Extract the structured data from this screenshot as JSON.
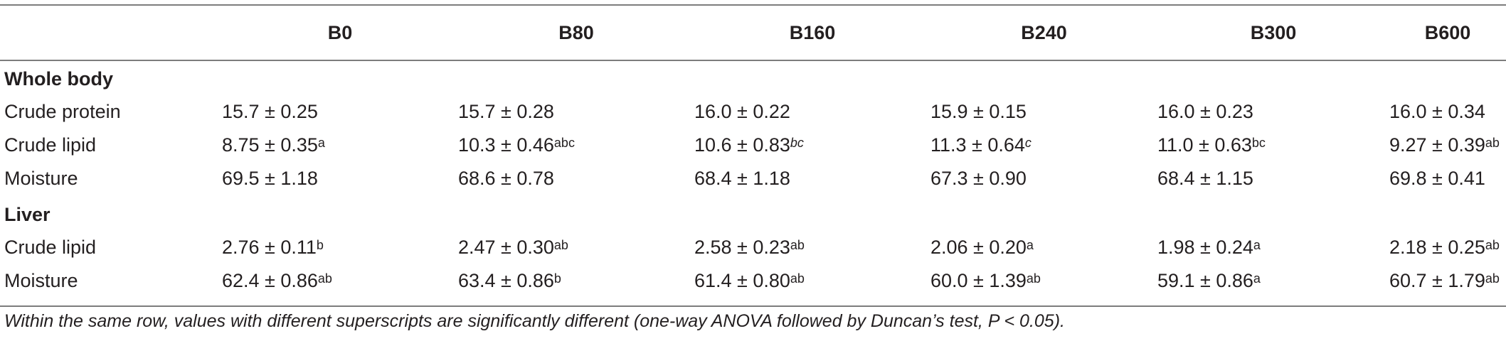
{
  "table": {
    "columns": [
      "",
      "B0",
      "B80",
      "B160",
      "B240",
      "B300",
      "B600"
    ],
    "sections": [
      {
        "title": "Whole body",
        "rows": [
          {
            "label": "Crude protein",
            "cells": [
              {
                "v": "15.7 ± 0.25",
                "sup": ""
              },
              {
                "v": "15.7 ± 0.28",
                "sup": ""
              },
              {
                "v": "16.0 ± 0.22",
                "sup": ""
              },
              {
                "v": "15.9 ± 0.15",
                "sup": ""
              },
              {
                "v": "16.0 ± 0.23",
                "sup": ""
              },
              {
                "v": "16.0 ± 0.34",
                "sup": ""
              }
            ]
          },
          {
            "label": "Crude lipid",
            "cells": [
              {
                "v": "8.75 ± 0.35",
                "sup": "a"
              },
              {
                "v": "10.3 ± 0.46",
                "sup": "abc"
              },
              {
                "v": "10.6 ± 0.83",
                "sup": "bc"
              },
              {
                "v": "11.3 ± 0.64",
                "sup": "c"
              },
              {
                "v": "11.0 ± 0.63",
                "sup": "bc"
              },
              {
                "v": "9.27 ± 0.39",
                "sup": "ab"
              }
            ]
          },
          {
            "label": "Moisture",
            "cells": [
              {
                "v": "69.5 ± 1.18",
                "sup": ""
              },
              {
                "v": "68.6 ± 0.78",
                "sup": ""
              },
              {
                "v": "68.4 ± 1.18",
                "sup": ""
              },
              {
                "v": "67.3 ± 0.90",
                "sup": ""
              },
              {
                "v": "68.4 ± 1.15",
                "sup": ""
              },
              {
                "v": "69.8 ± 0.41",
                "sup": ""
              }
            ]
          }
        ]
      },
      {
        "title": "Liver",
        "rows": [
          {
            "label": "Crude lipid",
            "cells": [
              {
                "v": "2.76 ± 0.11",
                "sup": "b"
              },
              {
                "v": "2.47 ± 0.30",
                "sup": "ab"
              },
              {
                "v": "2.58 ± 0.23",
                "sup": "ab"
              },
              {
                "v": "2.06 ± 0.20",
                "sup": "a"
              },
              {
                "v": "1.98 ± 0.24",
                "sup": "a"
              },
              {
                "v": "2.18 ± 0.25",
                "sup": "ab"
              }
            ]
          },
          {
            "label": "Moisture",
            "cells": [
              {
                "v": "62.4 ± 0.86",
                "sup": "ab"
              },
              {
                "v": "63.4 ± 0.86",
                "sup": "b"
              },
              {
                "v": "61.4 ± 0.80",
                "sup": "ab"
              },
              {
                "v": "60.0 ± 1.39",
                "sup": "ab"
              },
              {
                "v": "59.1 ± 0.86",
                "sup": "a"
              },
              {
                "v": "60.7 ± 1.79",
                "sup": "ab"
              }
            ]
          }
        ]
      }
    ]
  },
  "footnote": "Within the same row, values with different superscripts are significantly different (one-way ANOVA followed by Duncan’s test, P < 0.05)."
}
